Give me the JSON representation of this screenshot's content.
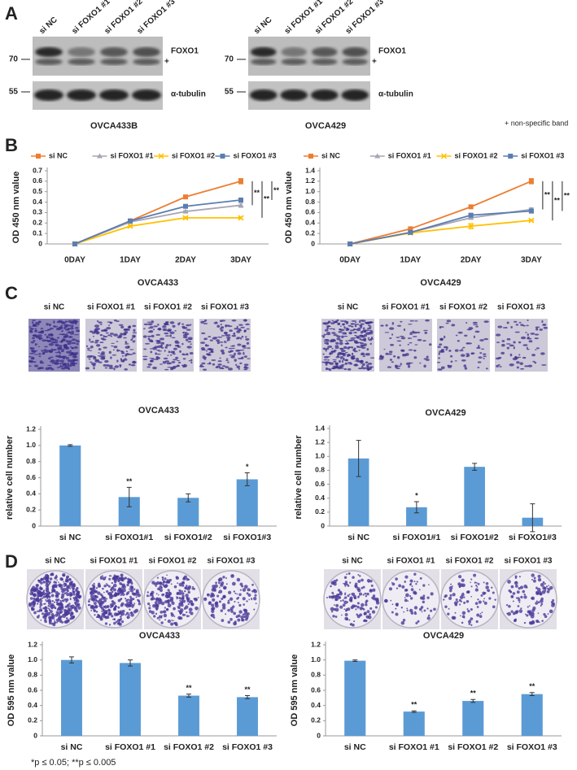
{
  "panel_labels": [
    "A",
    "B",
    "C",
    "D"
  ],
  "blots": [
    {
      "lanes": [
        "si NC",
        "si FOXO1 #1",
        "si FOXO1 #2",
        "si FOXO1 #3"
      ],
      "marker_top": "70",
      "band_top": "FOXO1",
      "nonspecific_mark": "+",
      "marker_bottom": "55",
      "band_bottom": "α-tubulin",
      "cell_line": "OVCA433B"
    },
    {
      "lanes": [
        "si NC",
        "si FOXO1 #1",
        "si FOXO1 #2",
        "si FOXO1 #3"
      ],
      "marker_top": "70",
      "band_top": "FOXO1",
      "nonspecific_mark": "+",
      "marker_bottom": "55",
      "band_bottom": "α-tubulin",
      "cell_line": "OVCA429"
    }
  ],
  "blot_note": "+ non-specific band",
  "micrographs": [
    {
      "labels": [
        "si NC",
        "si FOXO1 #1",
        "si FOXO1 #2",
        "si FOXO1 #3"
      ]
    },
    {
      "labels": [
        "si NC",
        "si FOXO1 #1",
        "si FOXO1 #2",
        "si FOXO1 #3"
      ]
    }
  ],
  "dishes": [
    {
      "labels": [
        "si NC",
        "si FOXO1 #1",
        "si FOXO1 #2",
        "si FOXO1 #3"
      ]
    },
    {
      "labels": [
        "si NC",
        "si FOXO1 #1",
        "si FOXO1 #2",
        "si FOXO1 #3"
      ]
    }
  ],
  "chart_data": [
    {
      "type": "line",
      "xlabel": "OVCA433",
      "ylabel": "OD 450 nm value",
      "categories": [
        "0DAY",
        "1DAY",
        "2DAY",
        "3DAY"
      ],
      "ylim": [
        0,
        0.7
      ],
      "yticks": [
        0,
        0.1,
        0.2,
        0.3,
        0.4,
        0.5,
        0.6,
        0.7
      ],
      "series": [
        {
          "name": "si NC",
          "color": "#ED7D31",
          "values": [
            0,
            0.22,
            0.45,
            0.6
          ],
          "errors": [
            0.005,
            0.01,
            0.01,
            0.025
          ]
        },
        {
          "name": "si FOXO1 #1",
          "color": "#A5A5B5",
          "values": [
            0,
            0.21,
            0.31,
            0.37
          ],
          "errors": [
            0.005,
            0.01,
            0.01,
            0.02
          ]
        },
        {
          "name": "si FOXO1 #2",
          "color": "#FFC000",
          "values": [
            0,
            0.17,
            0.25,
            0.25
          ],
          "errors": [
            0.005,
            0.01,
            0.01,
            0.01
          ]
        },
        {
          "name": "si FOXO1 #3",
          "color": "#5B7DB1",
          "values": [
            0,
            0.22,
            0.36,
            0.42
          ],
          "errors": [
            0.005,
            0.01,
            0.01,
            0.01
          ]
        }
      ],
      "significance": [
        "**",
        "**",
        "**"
      ]
    },
    {
      "type": "line",
      "xlabel": "OVCA429",
      "ylabel": "OD 450 nm value",
      "categories": [
        "0DAY",
        "1DAY",
        "2DAY",
        "3DAY"
      ],
      "ylim": [
        0,
        1.4
      ],
      "yticks": [
        0,
        0.2,
        0.4,
        0.6,
        0.8,
        {
          "value": 1,
          "label": "1.0"
        },
        1.2,
        1.4
      ],
      "series": [
        {
          "name": "si NC",
          "color": "#ED7D31",
          "values": [
            0,
            0.29,
            0.71,
            1.2
          ],
          "errors": [
            0.005,
            0.01,
            0.01,
            0.05
          ]
        },
        {
          "name": "si FOXO1 #1",
          "color": "#A5A5B5",
          "values": [
            0,
            0.22,
            0.5,
            0.66
          ],
          "errors": [
            0.005,
            0.01,
            0.01,
            0.03
          ]
        },
        {
          "name": "si FOXO1 #2",
          "color": "#FFC000",
          "values": [
            0,
            0.21,
            0.34,
            0.45
          ],
          "errors": [
            0.005,
            0.01,
            0.05,
            0.01
          ]
        },
        {
          "name": "si FOXO1 #3",
          "color": "#5B7DB1",
          "values": [
            0,
            0.22,
            0.55,
            0.63
          ],
          "errors": [
            0.005,
            0.01,
            0.02,
            0.04
          ]
        }
      ],
      "significance": [
        "**",
        "**",
        "**"
      ]
    },
    {
      "type": "bar",
      "title": "OVCA433",
      "ylabel": "relative cell number",
      "color": "#5B9BD5",
      "categories": [
        "si NC",
        "si FOXO1#1",
        "si FOXO1#2",
        "si FOXO1#3"
      ],
      "values": [
        1.0,
        0.36,
        0.35,
        0.58
      ],
      "errors": [
        0.01,
        0.12,
        0.05,
        0.08
      ],
      "annotations": [
        "",
        "**",
        null,
        "*"
      ],
      "ylim": [
        0,
        1.2
      ],
      "yticks": [
        0,
        0.2,
        0.4,
        0.6,
        0.8,
        {
          "value": 1,
          "label": "1.0"
        },
        1.2
      ]
    },
    {
      "type": "bar",
      "title": "OVCA429",
      "ylabel": "relative cell number",
      "color": "#5B9BD5",
      "categories": [
        "si NC",
        "si FOXO1#1",
        "si FOXO1#2",
        "si FOXO1#3"
      ],
      "values": [
        0.97,
        0.27,
        0.85,
        0.12
      ],
      "errors": [
        0.26,
        0.08,
        0.05,
        0.2
      ],
      "annotations": [
        null,
        "*",
        null,
        null
      ],
      "ylim": [
        0,
        1.4
      ],
      "yticks": [
        0,
        0.2,
        0.4,
        0.6,
        0.8,
        {
          "value": 1,
          "label": "1.0"
        },
        1.2,
        1.4
      ]
    },
    {
      "type": "bar",
      "title": "OVCA433",
      "ylabel": "OD 595 nm value",
      "color": "#5B9BD5",
      "categories": [
        "si NC",
        "si FOXO1 #1",
        "si FOXO1 #2",
        "si FOXO1 #3"
      ],
      "values": [
        1.0,
        0.96,
        0.53,
        0.51
      ],
      "errors": [
        0.04,
        0.04,
        0.02,
        0.02
      ],
      "annotations": [
        null,
        null,
        "**",
        "**"
      ],
      "ylim": [
        0,
        1.2
      ],
      "yticks": [
        0,
        0.2,
        0.4,
        0.6,
        0.8,
        {
          "value": 1,
          "label": "1.0"
        },
        1.2
      ]
    },
    {
      "type": "bar",
      "title": "OVCA429",
      "ylabel": "OD 595 nm value",
      "color": "#5B9BD5",
      "categories": [
        "si NC",
        "si FOXO1 #1",
        "si FOXO1 #2",
        "si FOXO1 #3"
      ],
      "values": [
        0.99,
        0.32,
        0.46,
        0.55
      ],
      "errors": [
        0.01,
        0.01,
        0.02,
        0.02
      ],
      "annotations": [
        null,
        "**",
        "**",
        "**"
      ],
      "ylim": [
        0,
        1.2
      ],
      "yticks": [
        0,
        0.2,
        0.4,
        0.6,
        0.8,
        {
          "value": 1,
          "label": "1.0"
        },
        1.2
      ]
    }
  ],
  "footnote": "*p ≤ 0.05; **p ≤ 0.005"
}
